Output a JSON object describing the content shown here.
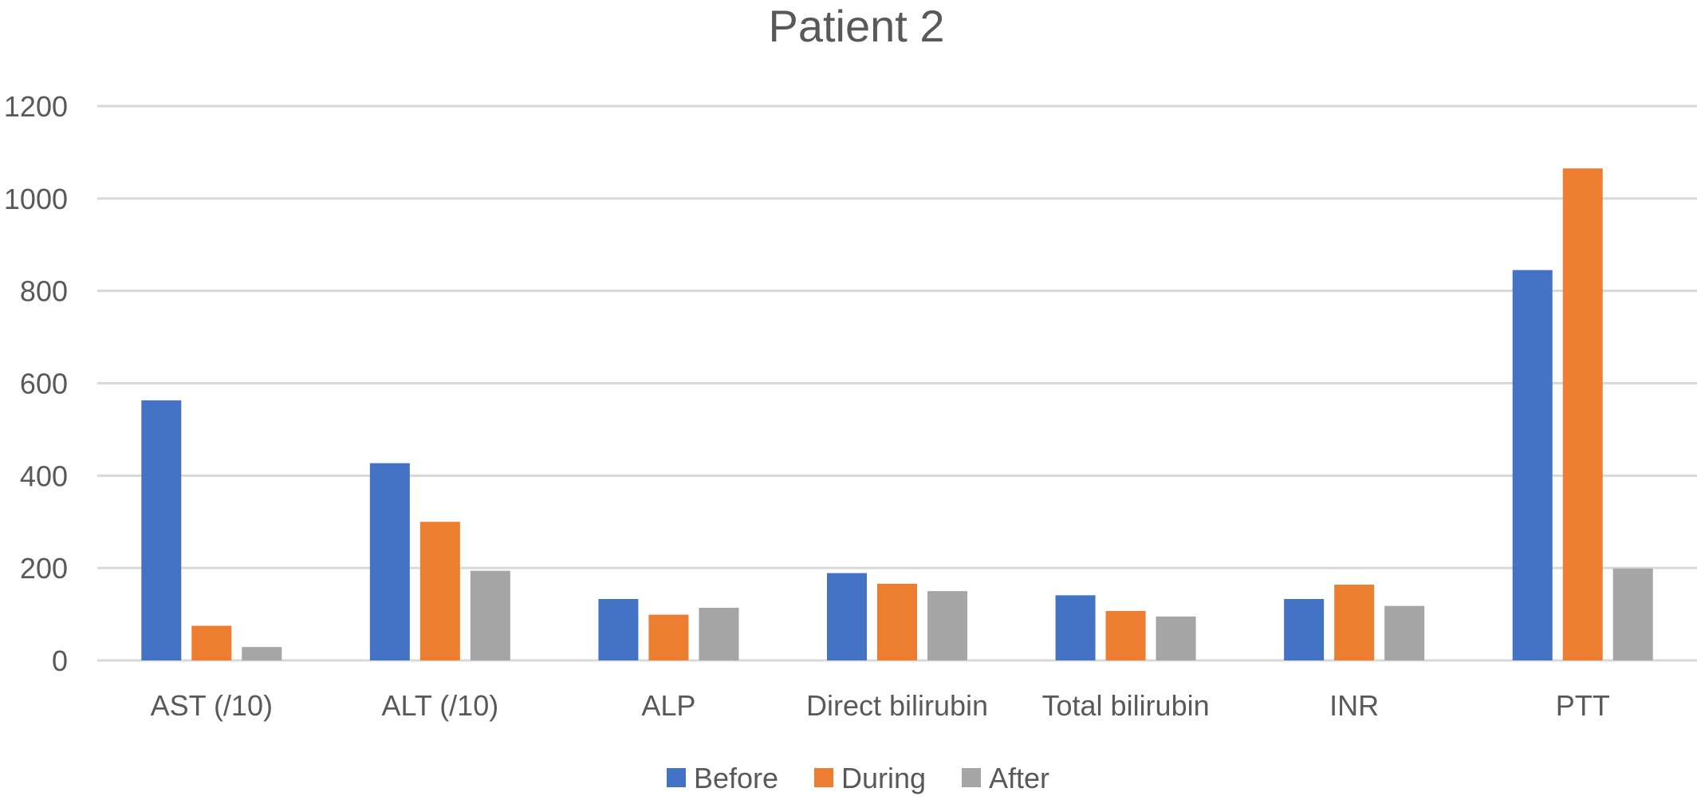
{
  "chart_data": {
    "type": "bar",
    "title": "Patient 2",
    "xlabel": "",
    "ylabel": "",
    "ylim": [
      0,
      1200
    ],
    "yticks": [
      0,
      200,
      400,
      600,
      800,
      1000,
      1200
    ],
    "grid": true,
    "legend_position": "bottom",
    "categories": [
      "AST (/10)",
      "ALT (/10)",
      "ALP",
      "Direct bilirubin",
      "Total bilirubin",
      "INR",
      "PTT"
    ],
    "series": [
      {
        "name": "Before",
        "color": "#4472c4",
        "values": [
          563,
          427,
          133,
          189,
          141,
          133,
          845
        ]
      },
      {
        "name": "During",
        "color": "#ed7d31",
        "values": [
          75,
          300,
          99,
          166,
          107,
          164,
          1065
        ]
      },
      {
        "name": "After",
        "color": "#a5a5a5",
        "values": [
          29,
          194,
          114,
          150,
          95,
          118,
          199
        ]
      }
    ]
  }
}
